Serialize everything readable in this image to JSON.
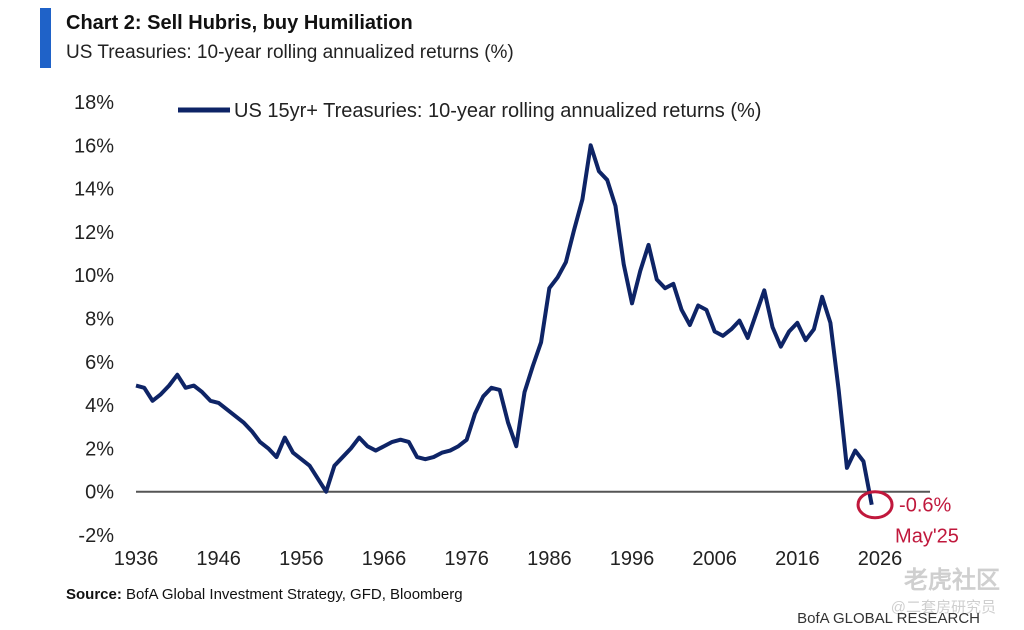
{
  "header": {
    "title": "Chart 2: Sell Hubris, buy Humiliation",
    "subtitle": "US Treasuries: 10-year rolling annualized returns (%)"
  },
  "chart_data": {
    "type": "line",
    "title": "Chart 2: Sell Hubris, buy Humiliation",
    "subtitle": "US Treasuries: 10-year rolling annualized returns (%)",
    "xlabel": "",
    "ylabel": "",
    "xlim": [
      1936,
      2028
    ],
    "ylim": [
      -2,
      18
    ],
    "xticks": [
      "1936",
      "1946",
      "1956",
      "1966",
      "1976",
      "1986",
      "1996",
      "2006",
      "2016",
      "2026"
    ],
    "yticks": [
      "18%",
      "16%",
      "14%",
      "12%",
      "10%",
      "8%",
      "6%",
      "4%",
      "2%",
      "0%",
      "-2%"
    ],
    "legend_position": "top",
    "grid": false,
    "series": [
      {
        "name": "US 15yr+ Treasuries: 10-year rolling annualized returns (%)",
        "color": "#0e2466",
        "x": [
          1936,
          1937,
          1938,
          1939,
          1940,
          1941,
          1942,
          1943,
          1944,
          1945,
          1946,
          1947,
          1948,
          1949,
          1950,
          1951,
          1952,
          1953,
          1954,
          1955,
          1956,
          1957,
          1958,
          1959,
          1960,
          1961,
          1962,
          1963,
          1964,
          1965,
          1966,
          1967,
          1968,
          1969,
          1970,
          1971,
          1972,
          1973,
          1974,
          1975,
          1976,
          1977,
          1978,
          1979,
          1980,
          1981,
          1982,
          1983,
          1984,
          1985,
          1986,
          1987,
          1988,
          1989,
          1990,
          1991,
          1992,
          1993,
          1994,
          1995,
          1996,
          1997,
          1998,
          1999,
          2000,
          2001,
          2002,
          2003,
          2004,
          2005,
          2006,
          2007,
          2008,
          2009,
          2010,
          2011,
          2012,
          2013,
          2014,
          2015,
          2016,
          2017,
          2018,
          2019,
          2020,
          2021,
          2022,
          2023,
          2024,
          2025
        ],
        "y": [
          4.9,
          4.8,
          4.2,
          4.5,
          4.9,
          5.4,
          4.8,
          4.9,
          4.6,
          4.2,
          4.1,
          3.8,
          3.5,
          3.2,
          2.8,
          2.3,
          2.0,
          1.6,
          2.5,
          1.8,
          1.5,
          1.2,
          0.6,
          0.0,
          1.2,
          1.6,
          2.0,
          2.5,
          2.1,
          1.9,
          2.1,
          2.3,
          2.4,
          2.3,
          1.6,
          1.5,
          1.6,
          1.8,
          1.9,
          2.1,
          2.4,
          3.6,
          4.4,
          4.8,
          4.7,
          3.2,
          2.1,
          4.6,
          5.8,
          6.9,
          9.4,
          9.9,
          10.6,
          12.1,
          13.5,
          16.0,
          14.8,
          14.4,
          13.2,
          10.5,
          8.7,
          10.2,
          11.4,
          9.8,
          9.4,
          9.6,
          8.4,
          7.7,
          8.6,
          8.4,
          7.4,
          7.2,
          7.5,
          7.9,
          7.1,
          8.2,
          9.3,
          7.6,
          6.7,
          7.4,
          7.8,
          7.0,
          7.5,
          9.0,
          7.8,
          4.7,
          1.1,
          1.9,
          1.4,
          -0.6
        ]
      }
    ],
    "annotations": [
      {
        "text": "-0.6%",
        "x": 2025.4,
        "y": -0.6,
        "color": "#c0183c"
      },
      {
        "text": "May'25",
        "x": 2025.4,
        "y": -0.6,
        "color": "#c0183c"
      }
    ],
    "reference_line": {
      "y": 0,
      "color": "#555555"
    }
  },
  "footer": {
    "source_label": "Source:",
    "source_text": "BofA Global Investment Strategy, GFD, Bloomberg",
    "brand": "BofA GLOBAL RESEARCH",
    "watermark": "老虎社区",
    "watermark_sub": "@二套房研究员"
  }
}
